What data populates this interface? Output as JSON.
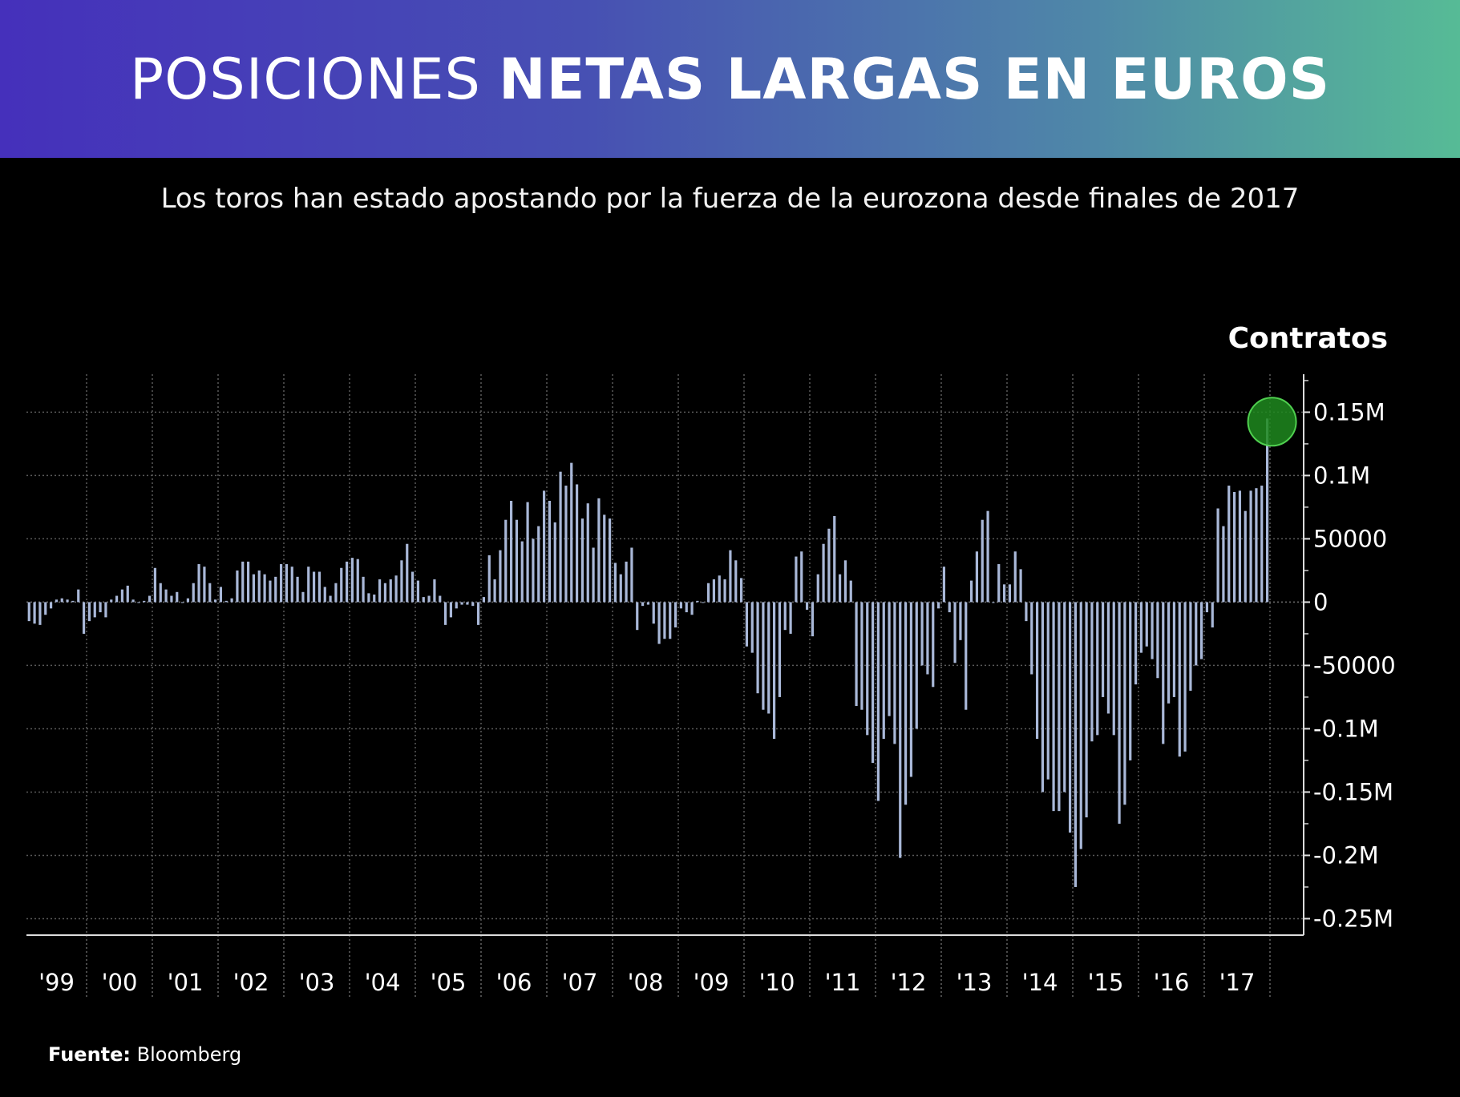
{
  "header": {
    "title_light": "POSICIONES",
    "title_bold": "NETAS LARGAS EN EUROS"
  },
  "subtitle": "Los toros han estado apostando por la fuerza de la eurozona desde finales de 2017",
  "source": {
    "label": "Fuente:",
    "value": "Bloomberg"
  },
  "colors": {
    "header_start": "#4530bb",
    "header_end": "#56bb96",
    "bar": "#a9b8d8",
    "highlight": "#1f8a1f",
    "background": "#000000"
  },
  "chart_data": {
    "type": "bar",
    "ylabel": "Contratos",
    "ylim": [
      -263000,
      180000
    ],
    "grid": true,
    "y_ticks": [
      {
        "value": 150000,
        "label": "0.15M"
      },
      {
        "value": 100000,
        "label": "0.1M"
      },
      {
        "value": 50000,
        "label": "50000"
      },
      {
        "value": 0,
        "label": "0"
      },
      {
        "value": -50000,
        "label": "-50000"
      },
      {
        "value": -100000,
        "label": "-0.1M"
      },
      {
        "value": -150000,
        "label": "-0.15M"
      },
      {
        "value": -200000,
        "label": "-0.2M"
      },
      {
        "value": -250000,
        "label": "-0.25M"
      }
    ],
    "x_ticks": [
      "'99",
      "'00",
      "'01",
      "'02",
      "'03",
      "'04",
      "'05",
      "'06",
      "'07",
      "'08",
      "'09",
      "'10",
      "'11",
      "'12",
      "'13",
      "'14",
      "'15",
      "'16",
      "'17"
    ],
    "highlight": {
      "year": 2017,
      "value": 145000
    },
    "series": [
      {
        "year": 1999,
        "start_month": 2,
        "values": [
          -15000,
          -17000,
          -18000,
          -10000,
          -5000,
          2000,
          3000,
          2000,
          1000,
          10000,
          -25000
        ]
      },
      {
        "year": 2000,
        "start_month": 1,
        "values": [
          -15000,
          -12000,
          -8000,
          -12000,
          2000,
          5000,
          10000,
          13000,
          2000,
          0,
          1000,
          5000
        ]
      },
      {
        "year": 2001,
        "start_month": 1,
        "values": [
          27000,
          15000,
          10000,
          5000,
          8000,
          0,
          3000,
          15000,
          30000,
          28000,
          15000,
          2000
        ]
      },
      {
        "year": 2002,
        "start_month": 1,
        "values": [
          12000,
          1000,
          3000,
          25000,
          32000,
          32000,
          22000,
          25000,
          22000,
          17000,
          20000,
          30000
        ]
      },
      {
        "year": 2003,
        "start_month": 1,
        "values": [
          30000,
          28000,
          20000,
          8000,
          28000,
          24000,
          24000,
          12000,
          5000,
          15000,
          27000,
          32000
        ]
      },
      {
        "year": 2004,
        "start_month": 1,
        "values": [
          35000,
          34000,
          20000,
          7000,
          6000,
          18000,
          15000,
          18000,
          21000,
          33000,
          46000,
          24000
        ]
      },
      {
        "year": 2005,
        "start_month": 1,
        "values": [
          17000,
          4000,
          5000,
          18000,
          5000,
          -18000,
          -12000,
          -5000,
          -2000,
          -2000,
          -3000,
          -18000
        ]
      },
      {
        "year": 2006,
        "start_month": 1,
        "values": [
          4000,
          37000,
          18000,
          41000,
          65000,
          80000,
          65000,
          48000,
          79000,
          50000,
          60000,
          88000
        ]
      },
      {
        "year": 2007,
        "start_month": 1,
        "values": [
          80000,
          63000,
          103000,
          92000,
          110000,
          93000,
          66000,
          78000,
          43000,
          82000,
          69000,
          66000
        ]
      },
      {
        "year": 2008,
        "start_month": 1,
        "values": [
          31000,
          22000,
          32000,
          43000,
          -22000,
          -3000,
          -2000,
          -17000,
          -33000,
          -29000,
          -29000,
          -20000
        ]
      },
      {
        "year": 2009,
        "start_month": 1,
        "values": [
          -5000,
          -8000,
          -10000,
          1000,
          0,
          15000,
          18000,
          21000,
          18000,
          41000,
          33000,
          19000
        ]
      },
      {
        "year": 2010,
        "start_month": 1,
        "values": [
          -35000,
          -40000,
          -72000,
          -85000,
          -88000,
          -108000,
          -75000,
          -22000,
          -25000,
          36000,
          40000,
          -6000
        ]
      },
      {
        "year": 2011,
        "start_month": 1,
        "values": [
          -27000,
          22000,
          46000,
          58000,
          68000,
          22000,
          33000,
          17000,
          -82000,
          -85000,
          -105000,
          -127000
        ]
      },
      {
        "year": 2012,
        "start_month": 1,
        "values": [
          -157000,
          -108000,
          -90000,
          -112000,
          -202000,
          -160000,
          -138000,
          -100000,
          -50000,
          -57000,
          -67000,
          -5000
        ]
      },
      {
        "year": 2013,
        "start_month": 1,
        "values": [
          28000,
          -8000,
          -48000,
          -30000,
          -85000,
          17000,
          40000,
          65000,
          72000,
          0,
          30000,
          14000
        ]
      },
      {
        "year": 2014,
        "start_month": 1,
        "values": [
          14000,
          40000,
          26000,
          -15000,
          -57000,
          -108000,
          -150000,
          -140000,
          -165000,
          -165000,
          -150000,
          -182000
        ]
      },
      {
        "year": 2015,
        "start_month": 1,
        "values": [
          -225000,
          -195000,
          -170000,
          -110000,
          -105000,
          -75000,
          -88000,
          -105000,
          -175000,
          -160000,
          -125000,
          -65000
        ]
      },
      {
        "year": 2016,
        "start_month": 1,
        "values": [
          -40000,
          -35000,
          -45000,
          -60000,
          -112000,
          -80000,
          -75000,
          -122000,
          -118000,
          -70000,
          -50000,
          -45000
        ]
      },
      {
        "year": 2017,
        "start_month": 1,
        "values": [
          -8000,
          -20000,
          74000,
          60000,
          92000,
          87000,
          88000,
          72000,
          88000,
          90000,
          92000,
          145000
        ]
      }
    ]
  }
}
